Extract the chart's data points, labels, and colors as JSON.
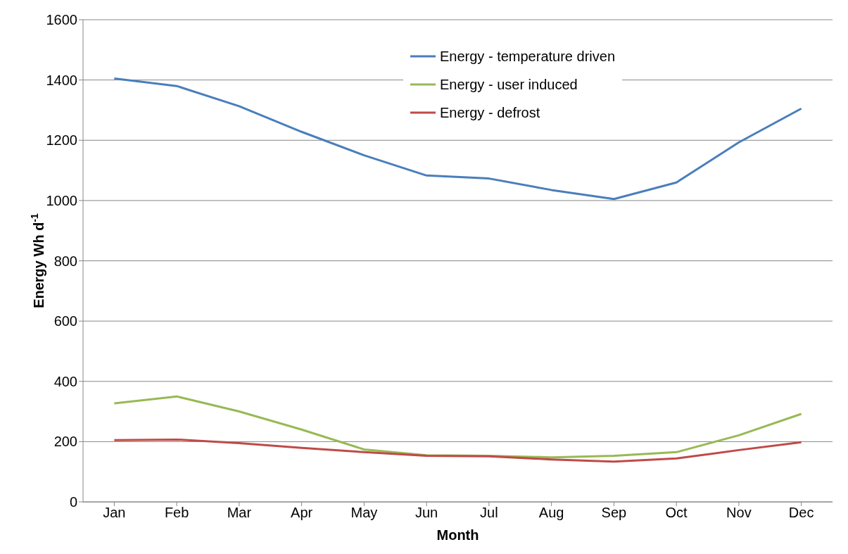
{
  "chart_data": {
    "type": "line",
    "xlabel": "Month",
    "ylabel": "Energy Wh d$^{-1}$",
    "categories": [
      "Jan",
      "Feb",
      "Mar",
      "Apr",
      "May",
      "Jun",
      "Jul",
      "Aug",
      "Sep",
      "Oct",
      "Nov",
      "Dec"
    ],
    "series": [
      {
        "name": "Energy - temperature driven",
        "color": "#4a7ebb",
        "values": [
          1405,
          1380,
          1313,
          1228,
          1150,
          1083,
          1073,
          1035,
          1005,
          1060,
          1193,
          1305
        ]
      },
      {
        "name": "Energy - user induced",
        "color": "#98b954",
        "values": [
          327,
          350,
          300,
          240,
          174,
          155,
          153,
          148,
          153,
          165,
          221,
          292
        ]
      },
      {
        "name": "Energy - defrost",
        "color": "#be4b48",
        "values": [
          205,
          207,
          195,
          179,
          165,
          153,
          151,
          141,
          134,
          144,
          172,
          198
        ]
      }
    ],
    "ylim": [
      0,
      1600
    ],
    "yticks": [
      0,
      200,
      400,
      600,
      800,
      1000,
      1200,
      1400,
      1600
    ],
    "grid": "y",
    "legend": "top right",
    "marker": "none",
    "line_style": "solid"
  }
}
